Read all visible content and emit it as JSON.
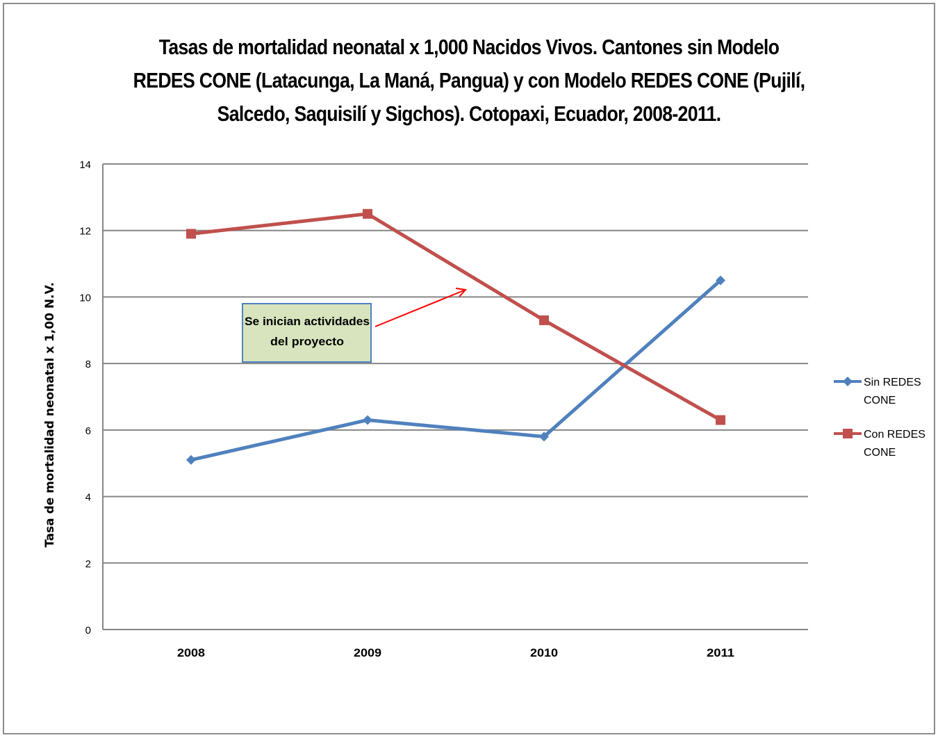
{
  "chart_data": {
    "type": "line",
    "title_lines": [
      "Tasas de mortalidad neonatal x 1,000 Nacidos Vivos. Cantones sin Modelo",
      "REDES CONE (Latacunga, La Maná, Pangua) y con Modelo REDES CONE (Pujilí,",
      "Salcedo, Saquisilí y Sigchos). Cotopaxi, Ecuador, 2008-2011."
    ],
    "xlabel": "",
    "ylabel": "Tasa de mortalidad neonatal x 1,00 N.V.",
    "categories": [
      "2008",
      "2009",
      "2010",
      "2011"
    ],
    "ylim": [
      0,
      14
    ],
    "yticks": [
      0,
      2,
      4,
      6,
      8,
      10,
      12,
      14
    ],
    "grid": true,
    "legend_position": "right",
    "series": [
      {
        "name_lines": [
          "Sin REDES",
          "CONE"
        ],
        "values": [
          5.1,
          6.3,
          5.8,
          10.5
        ],
        "color": "#4f81bd",
        "marker": "diamond"
      },
      {
        "name_lines": [
          "Con REDES",
          "CONE"
        ],
        "values": [
          11.9,
          12.5,
          9.3,
          6.3
        ],
        "color": "#c0504d",
        "marker": "square"
      }
    ],
    "annotation": {
      "lines": [
        "Se inician actividades",
        "del proyecto"
      ],
      "box_color": "#d7e4bd",
      "border_color": "#4f81bd",
      "arrow_color": "#ff0000"
    }
  }
}
